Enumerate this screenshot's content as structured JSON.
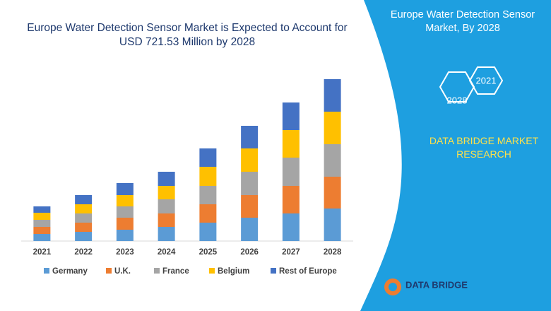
{
  "chart_data": {
    "type": "stacked-bar",
    "title": "Europe Water Detection Sensor Market is Expected to Account for USD 721.53 Million by 2028",
    "categories": [
      "2021",
      "2022",
      "2023",
      "2024",
      "2025",
      "2026",
      "2027",
      "2028"
    ],
    "series": [
      {
        "name": "Germany",
        "color": "#5b9bd5",
        "values": [
          10,
          13,
          16,
          20,
          26,
          33,
          39,
          46
        ]
      },
      {
        "name": "U.K.",
        "color": "#ed7d31",
        "values": [
          10,
          13,
          17,
          19,
          26,
          32,
          39,
          45
        ]
      },
      {
        "name": "France",
        "color": "#a5a5a5",
        "values": [
          10,
          13,
          16,
          20,
          26,
          33,
          40,
          46
        ]
      },
      {
        "name": "Belgium",
        "color": "#ffc000",
        "values": [
          10,
          13,
          16,
          19,
          27,
          33,
          39,
          46
        ]
      },
      {
        "name": "Rest of Europe",
        "color": "#4472c4",
        "values": [
          9,
          13,
          17,
          20,
          26,
          32,
          39,
          46
        ]
      }
    ]
  },
  "panel": {
    "title": "Europe Water Detection Sensor Market, By 2028",
    "badges": [
      "2021",
      "2028"
    ],
    "brand": "DATA BRIDGE MARKET RESEARCH",
    "logo": "DATA BRIDGE"
  }
}
